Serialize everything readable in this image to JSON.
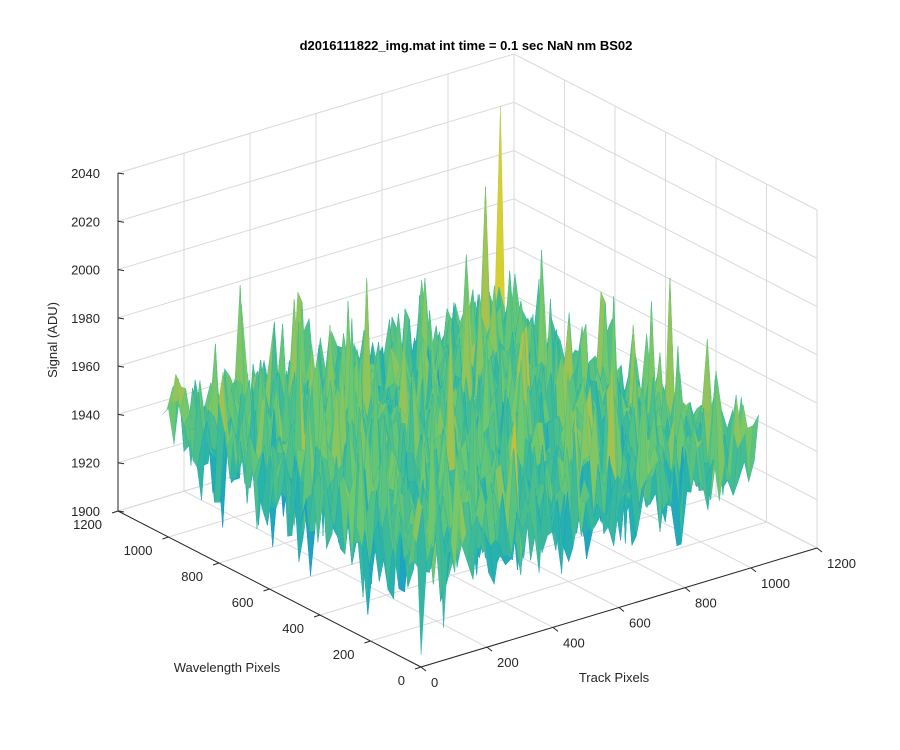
{
  "chart_data": {
    "type": "surface",
    "title": "d2016111822_img.mat int time = 0.1 sec  NaN nm BS02",
    "xlabel": "Track Pixels",
    "ylabel": "Wavelength Pixels",
    "zlabel": "Signal (ADU)",
    "xlim": [
      0,
      1200
    ],
    "ylim": [
      0,
      1200
    ],
    "zlim": [
      1900,
      2040
    ],
    "x_ticks": [
      "0",
      "200",
      "400",
      "600",
      "800",
      "1000",
      "1200"
    ],
    "y_ticks": [
      "0",
      "200",
      "400",
      "600",
      "800",
      "1000",
      "1200"
    ],
    "z_ticks": [
      "1900",
      "1920",
      "1940",
      "1960",
      "1980",
      "2000",
      "2020",
      "2040"
    ],
    "grid": true,
    "colormap": "parula",
    "data_extent": {
      "x": [
        1,
        1024
      ],
      "y": [
        1,
        1024
      ]
    },
    "baseline_mean": 1945,
    "noise_range": [
      1905,
      2035
    ],
    "notable_peak": {
      "x": 1000,
      "y": 1000,
      "z": 2035
    },
    "notable_dip": {
      "x": 0,
      "y": 0,
      "z": 1905
    }
  }
}
